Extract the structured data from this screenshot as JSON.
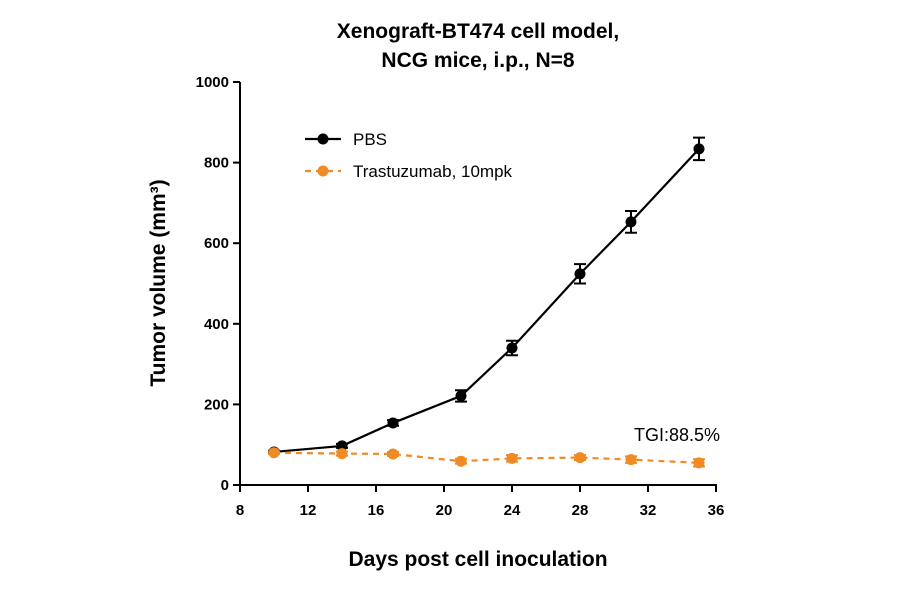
{
  "chart_data": {
    "type": "line",
    "title": [
      "Xenograft-BT474 cell model,",
      "NCG mice, i.p., N=8"
    ],
    "xlabel": "Days post cell inoculation",
    "ylabel": "Tumor volume (mm³)",
    "annotation": "TGI:88.5%",
    "xlim": [
      8,
      36
    ],
    "xticks": [
      8,
      12,
      16,
      20,
      24,
      28,
      32,
      36
    ],
    "ylim": [
      0,
      1000
    ],
    "yticks": [
      0,
      200,
      400,
      600,
      800,
      1000
    ],
    "grid": false,
    "legend": "upper left",
    "series": [
      {
        "name": "PBS",
        "color": "#000000",
        "linestyle": "solid",
        "x": [
          10,
          14,
          17,
          21,
          24,
          28,
          31,
          35
        ],
        "values": [
          82,
          97,
          154,
          221,
          340,
          524,
          653,
          834
        ],
        "errors": [
          3,
          5,
          7,
          14,
          18,
          24,
          27,
          28
        ]
      },
      {
        "name": "Trastuzumab, 10mpk",
        "color": "#f08a24",
        "linestyle": "dashed",
        "x": [
          10,
          14,
          17,
          21,
          24,
          28,
          31,
          35
        ],
        "values": [
          80,
          78,
          77,
          59,
          66,
          68,
          63,
          55
        ],
        "errors": [
          3,
          5,
          5,
          6,
          8,
          6,
          8,
          9
        ]
      }
    ]
  }
}
